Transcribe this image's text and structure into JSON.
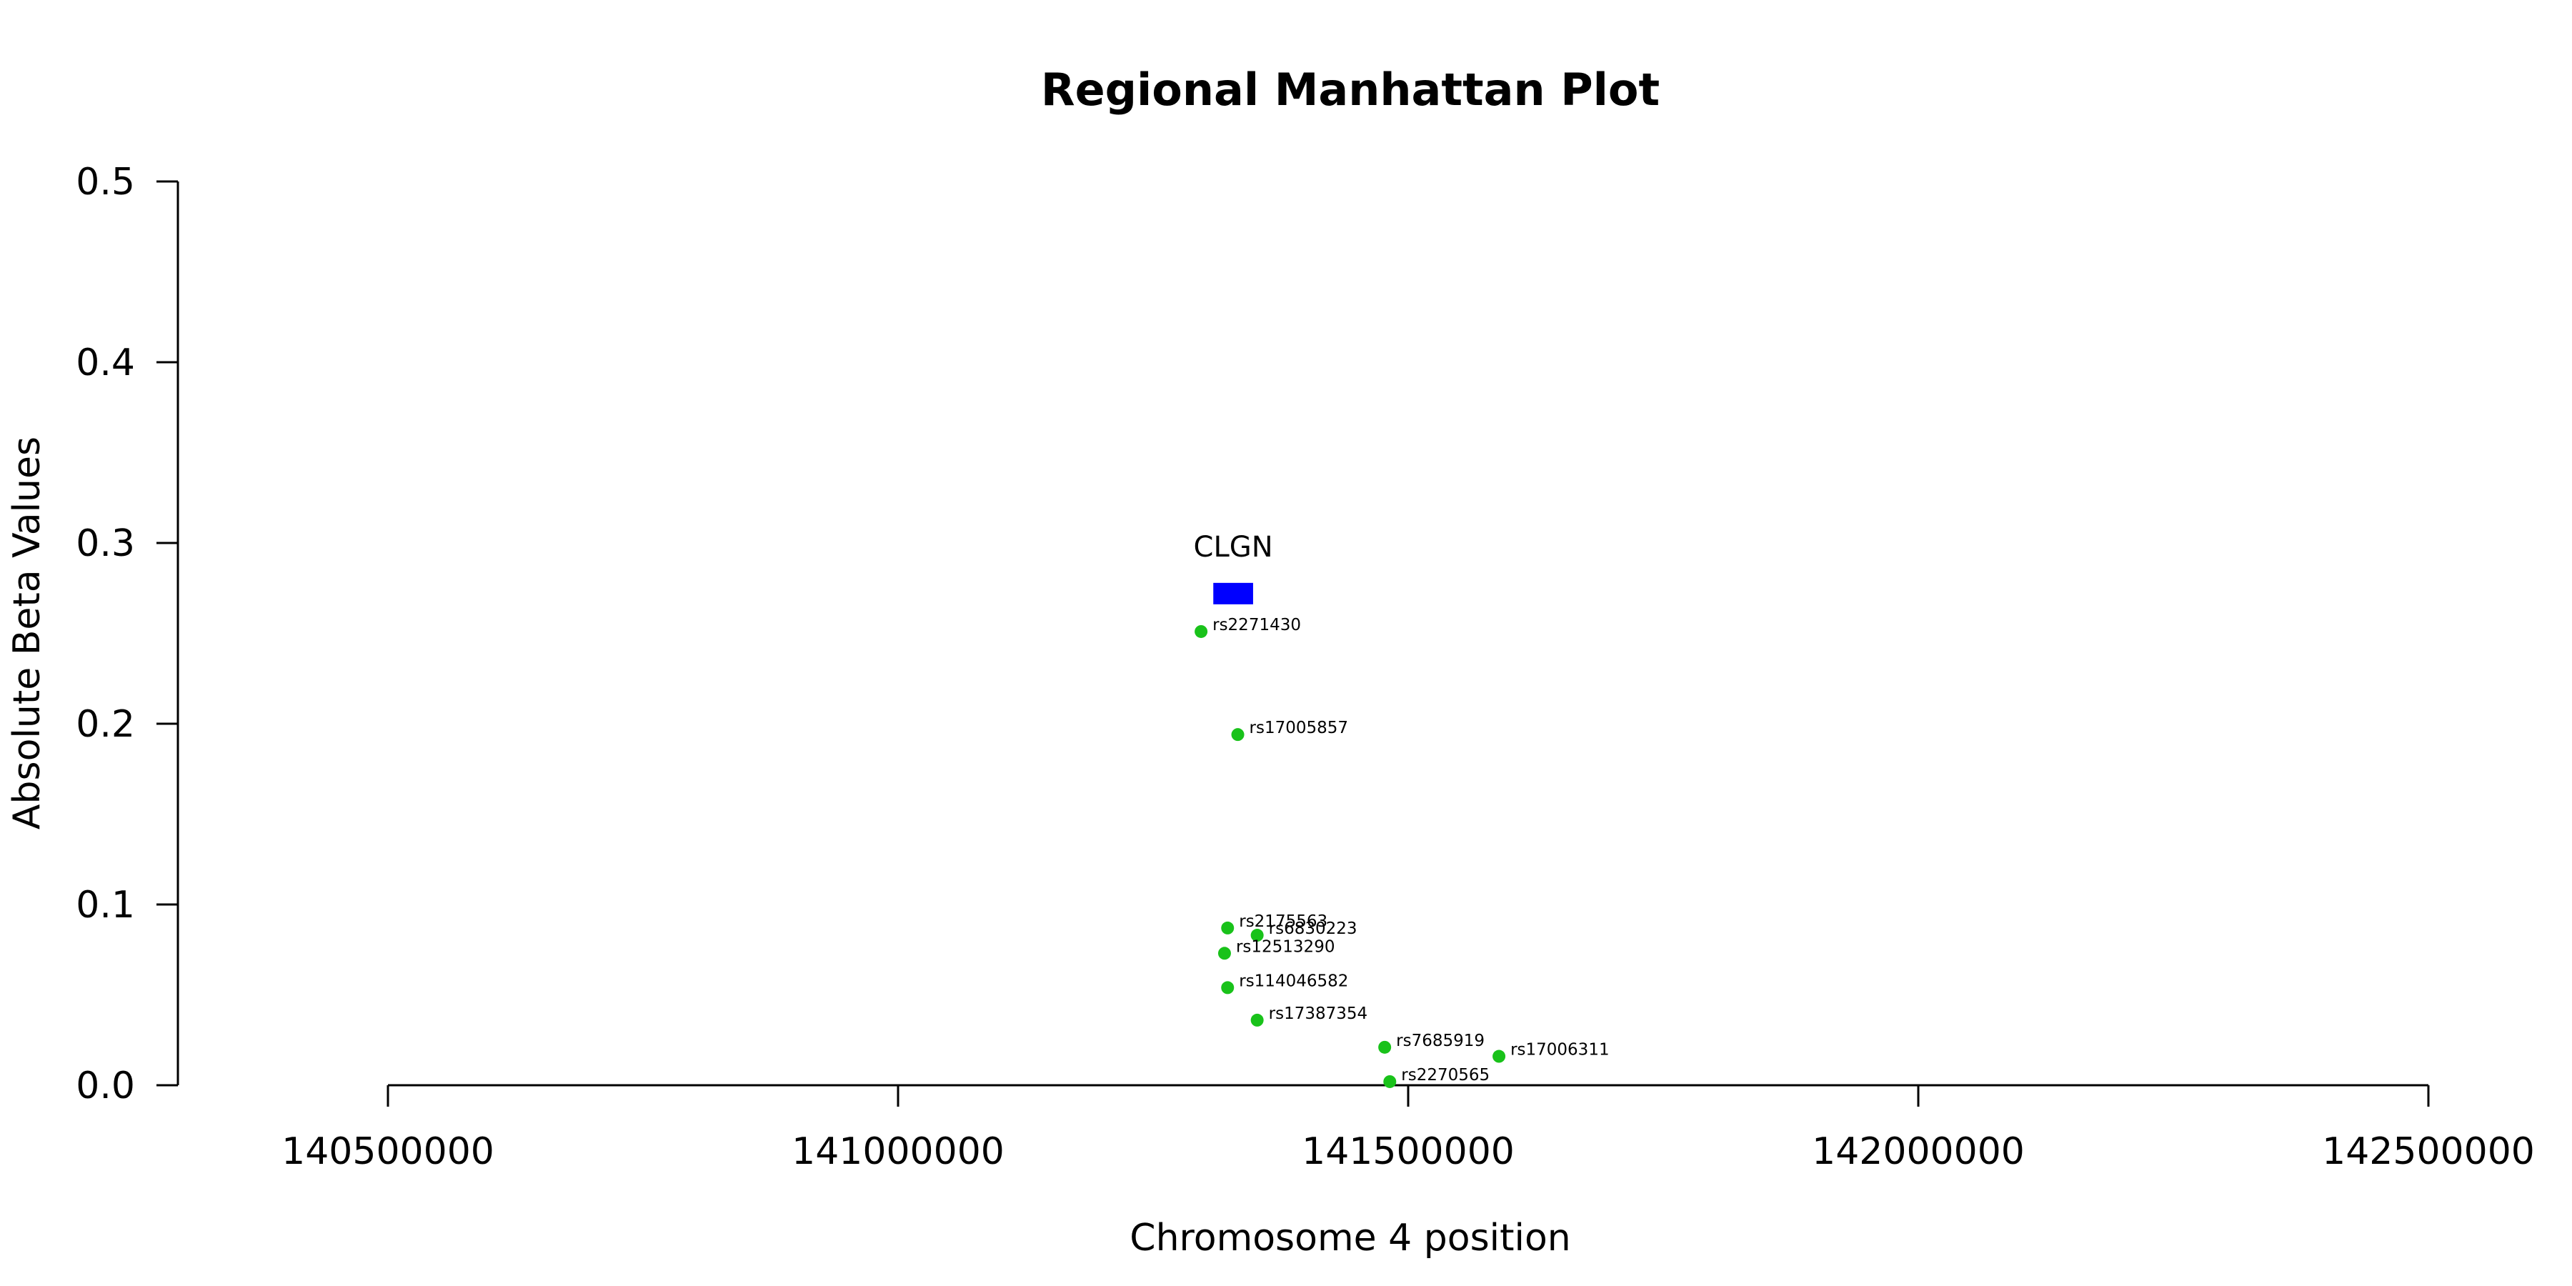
{
  "chart_data": {
    "type": "scatter",
    "title": "Regional Manhattan Plot",
    "xlabel": "Chromosome 4 position",
    "ylabel": "Absolute Beta Values",
    "xlim": [
      140500000,
      142500000
    ],
    "ylim": [
      0,
      0.5
    ],
    "x_ticks": [
      140500000,
      141000000,
      141500000,
      142000000,
      142500000
    ],
    "x_tick_labels": [
      "140500000",
      "141000000",
      "141500000",
      "142000000",
      "142500000"
    ],
    "y_ticks": [
      0,
      0.1,
      0.2,
      0.3,
      0.4,
      0.5
    ],
    "y_tick_labels": [
      "0.0",
      "0.1",
      "0.2",
      "0.3",
      "0.4",
      "0.5"
    ],
    "grid": false,
    "point_color": "#19c21a",
    "gene": {
      "name": "CLGN",
      "start": 141309000,
      "end": 141348000,
      "y": 0.272,
      "color": "#0000ff"
    },
    "points": [
      {
        "label": "rs2271430",
        "x": 141297000,
        "y": 0.251
      },
      {
        "label": "rs17005857",
        "x": 141333000,
        "y": 0.194
      },
      {
        "label": "rs2175563",
        "x": 141323000,
        "y": 0.087
      },
      {
        "label": "rs6830223",
        "x": 141352000,
        "y": 0.083
      },
      {
        "label": "rs12513290",
        "x": 141320000,
        "y": 0.073
      },
      {
        "label": "rs114046582",
        "x": 141323000,
        "y": 0.054
      },
      {
        "label": "rs17387354",
        "x": 141352000,
        "y": 0.036
      },
      {
        "label": "rs7685919",
        "x": 141477000,
        "y": 0.021
      },
      {
        "label": "rs17006311",
        "x": 141589000,
        "y": 0.016
      },
      {
        "label": "rs2270565",
        "x": 141482000,
        "y": 0.002
      }
    ]
  }
}
